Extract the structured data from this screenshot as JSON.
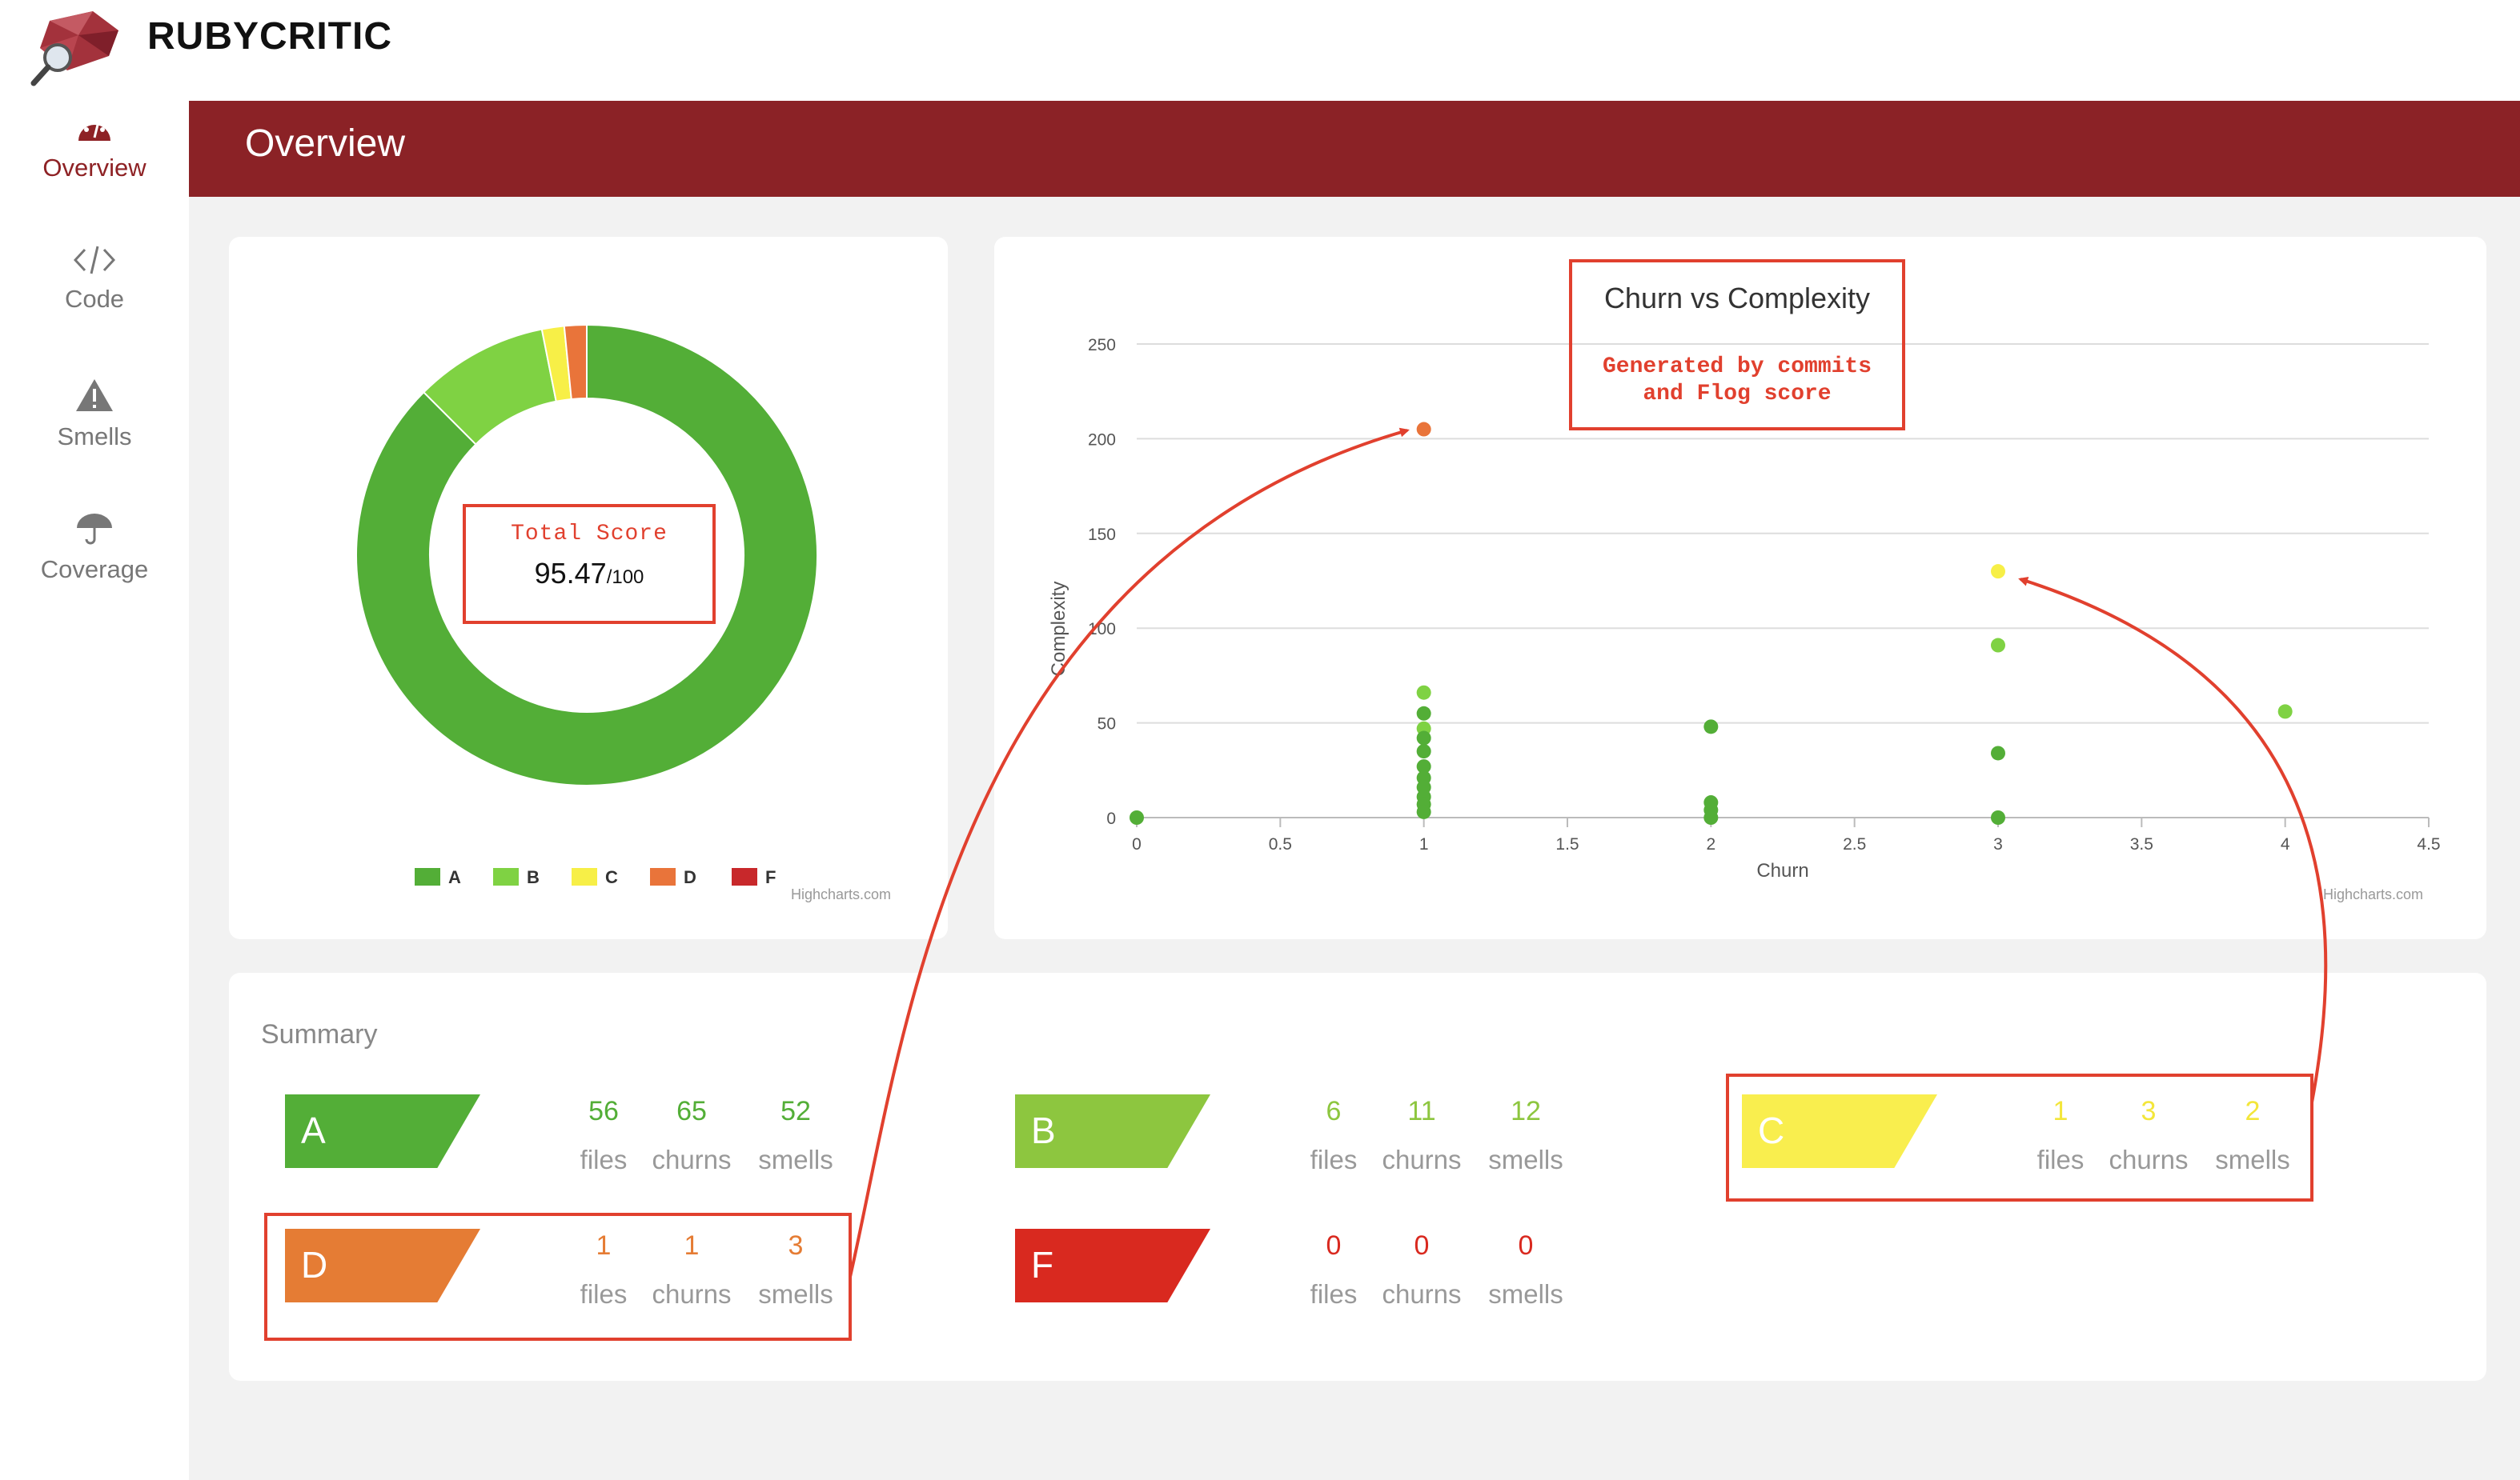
{
  "app": {
    "brand": "RUBYCRITIC"
  },
  "sidebar": {
    "items": [
      {
        "label": "Overview",
        "icon": "dashboard-gauge-icon",
        "active": true
      },
      {
        "label": "Code",
        "icon": "code-icon",
        "active": false
      },
      {
        "label": "Smells",
        "icon": "warning-icon",
        "active": false
      },
      {
        "label": "Coverage",
        "icon": "umbrella-icon",
        "active": false
      }
    ]
  },
  "header": {
    "title": "Overview"
  },
  "score_card": {
    "total_label": "Total Score",
    "score": "95.47",
    "max": "/100",
    "credit": "Highcharts.com"
  },
  "scatter_card": {
    "annotation": "Generated by commits and Flog score",
    "annotation_lines": [
      "Generated by commits",
      "and Flog score"
    ],
    "credit": "Highcharts.com"
  },
  "chart_data": [
    {
      "type": "pie",
      "donut": true,
      "categories": [
        "A",
        "B",
        "C",
        "D",
        "F"
      ],
      "values": [
        56,
        6,
        1,
        1,
        0
      ],
      "colors": [
        "#53ae37",
        "#7fd243",
        "#f7ef47",
        "#e9743a",
        "#c8282b"
      ],
      "legend": "bottom"
    },
    {
      "type": "scatter",
      "title": "Churn vs Complexity",
      "xlabel": "Churn",
      "ylabel": "Complexity",
      "xlim": [
        0,
        4.5
      ],
      "ylim": [
        0,
        250
      ],
      "xticks": [
        "0",
        "0.5",
        "1",
        "1.5",
        "2",
        "2.5",
        "3",
        "3.5",
        "4",
        "4.5"
      ],
      "yticks": [
        "0",
        "50",
        "100",
        "150",
        "200",
        "250"
      ],
      "grid": true,
      "points": [
        {
          "x": 0,
          "y": 0,
          "color": "#53ae37"
        },
        {
          "x": 1,
          "y": 205,
          "color": "#e9743a"
        },
        {
          "x": 1,
          "y": 66,
          "color": "#7fd243"
        },
        {
          "x": 1,
          "y": 55,
          "color": "#53ae37"
        },
        {
          "x": 1,
          "y": 47,
          "color": "#7fd243"
        },
        {
          "x": 1,
          "y": 42,
          "color": "#53ae37"
        },
        {
          "x": 1,
          "y": 35,
          "color": "#53ae37"
        },
        {
          "x": 1,
          "y": 27,
          "color": "#53ae37"
        },
        {
          "x": 1,
          "y": 21,
          "color": "#53ae37"
        },
        {
          "x": 1,
          "y": 16,
          "color": "#53ae37"
        },
        {
          "x": 1,
          "y": 11,
          "color": "#53ae37"
        },
        {
          "x": 1,
          "y": 7,
          "color": "#53ae37"
        },
        {
          "x": 1,
          "y": 3,
          "color": "#53ae37"
        },
        {
          "x": 2,
          "y": 48,
          "color": "#53ae37"
        },
        {
          "x": 2,
          "y": 8,
          "color": "#53ae37"
        },
        {
          "x": 2,
          "y": 4,
          "color": "#53ae37"
        },
        {
          "x": 2,
          "y": 0,
          "color": "#53ae37"
        },
        {
          "x": 3,
          "y": 130,
          "color": "#f7ef47"
        },
        {
          "x": 3,
          "y": 91,
          "color": "#7fd243"
        },
        {
          "x": 3,
          "y": 34,
          "color": "#53ae37"
        },
        {
          "x": 3,
          "y": 0,
          "color": "#53ae37"
        },
        {
          "x": 4,
          "y": 56,
          "color": "#7fd243"
        }
      ]
    }
  ],
  "summary": {
    "title": "Summary",
    "grades": [
      {
        "grade": "A",
        "color": "#53ae37",
        "text_color": "#53ae37",
        "files": "56",
        "churns": "65",
        "smells": "52"
      },
      {
        "grade": "B",
        "color": "#8dc63f",
        "text_color": "#8dc63f",
        "files": "6",
        "churns": "11",
        "smells": "12"
      },
      {
        "grade": "C",
        "color": "#f9ee4e",
        "text_color": "#f3e63a",
        "files": "1",
        "churns": "3",
        "smells": "2"
      },
      {
        "grade": "D",
        "color": "#e57c34",
        "text_color": "#e57c34",
        "files": "1",
        "churns": "1",
        "smells": "3"
      },
      {
        "grade": "F",
        "color": "#d9291f",
        "text_color": "#d9291f",
        "files": "0",
        "churns": "0",
        "smells": "0"
      }
    ],
    "labels": {
      "files": "files",
      "churns": "churns",
      "smells": "smells"
    }
  }
}
